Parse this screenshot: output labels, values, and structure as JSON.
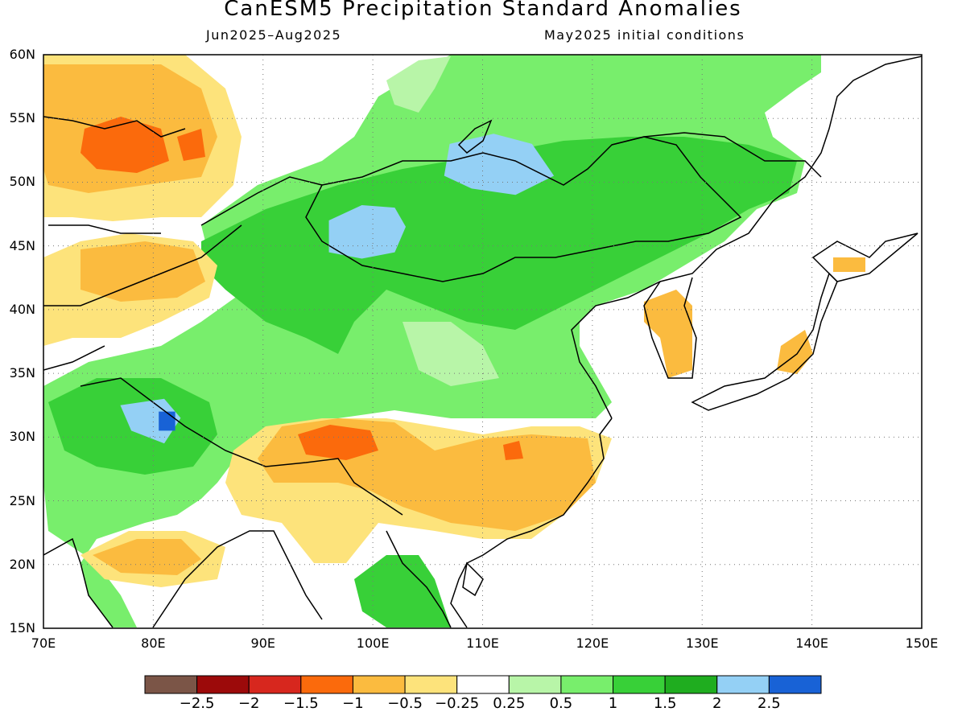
{
  "title": "CanESM5 Precipitation Standard Anomalies",
  "period": "Jun2025–Aug2025",
  "init": "May2025 initial conditions",
  "map": {
    "lon_range": [
      70,
      150
    ],
    "lat_range": [
      15,
      60
    ],
    "lon_ticks": [
      "70E",
      "80E",
      "90E",
      "100E",
      "110E",
      "120E",
      "130E",
      "140E",
      "150E"
    ],
    "lat_ticks": [
      "60N",
      "55N",
      "50N",
      "45N",
      "40N",
      "35N",
      "30N",
      "25N",
      "20N",
      "15N"
    ],
    "grid": true,
    "regions": [
      {
        "level": 2.25,
        "note": "wet",
        "poly": [
          [
            96,
            47
          ],
          [
            99,
            48.2
          ],
          [
            102,
            48
          ],
          [
            103,
            46.5
          ],
          [
            102,
            44.5
          ],
          [
            99,
            44
          ],
          [
            96,
            44.5
          ]
        ]
      },
      {
        "level": 2.5,
        "note": "wet",
        "poly": [
          [
            108,
            52.5
          ],
          [
            111,
            53
          ],
          [
            114,
            52.5
          ],
          [
            115,
            51
          ],
          [
            113,
            50
          ],
          [
            110,
            50.5
          ],
          [
            108,
            51.5
          ]
        ]
      },
      {
        "level": 2.25,
        "note": "wet",
        "poly": [
          [
            107,
            53
          ],
          [
            111,
            53.8
          ],
          [
            114.5,
            53
          ],
          [
            116.5,
            50.5
          ],
          [
            113,
            49
          ],
          [
            109,
            49.5
          ],
          [
            106.5,
            50.5
          ]
        ]
      },
      {
        "level": 2.25,
        "note": "wet",
        "poly": [
          [
            77,
            32.5
          ],
          [
            81,
            33
          ],
          [
            82.5,
            31.5
          ],
          [
            81,
            29.5
          ],
          [
            78,
            30.5
          ]
        ]
      },
      {
        "level": 2.5,
        "note": "wet",
        "poly": [
          [
            80.5,
            32
          ],
          [
            82,
            32
          ],
          [
            82,
            30.5
          ],
          [
            80.5,
            30.5
          ]
        ]
      }
    ]
  },
  "colorbar": {
    "labels": [
      "−2.5",
      "−2",
      "−1.5",
      "−1",
      "−0.5",
      "−0.25",
      "0.25",
      "0.5",
      "1",
      "1.5",
      "2",
      "2.5"
    ],
    "colors": [
      "#7b5547",
      "#9c0a0a",
      "#d7271e",
      "#fb6a0c",
      "#fbbb3f",
      "#fde37b",
      "#ffffff",
      "#b8f5a8",
      "#78ee6c",
      "#38d038",
      "#1fad1f",
      "#94d0f5",
      "#1862d6"
    ]
  }
}
